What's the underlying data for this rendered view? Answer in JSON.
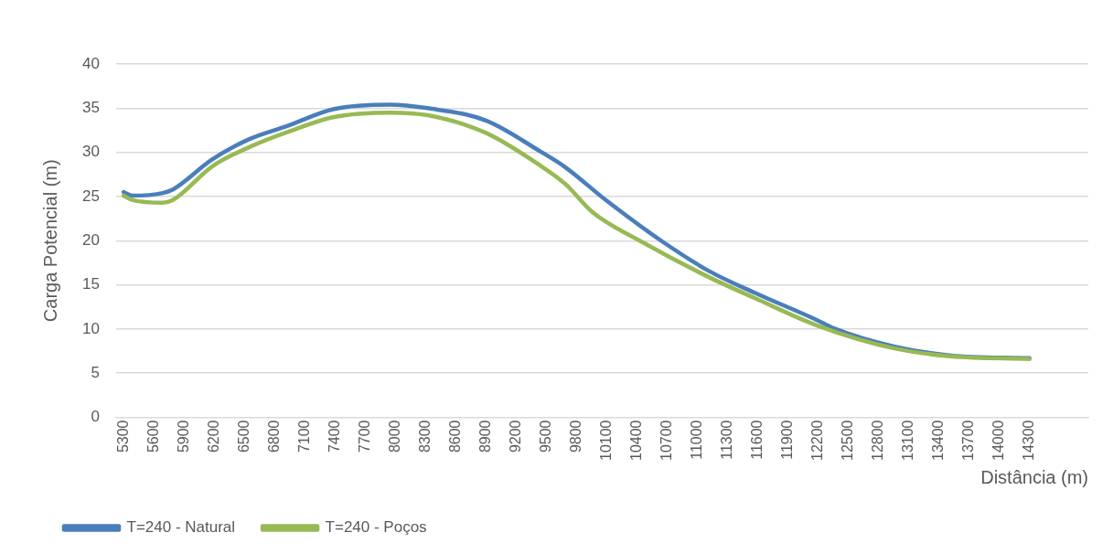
{
  "chart_data": {
    "type": "line",
    "xlabel": "Distância (m)",
    "ylabel": "Carga Potencial (m)",
    "xlim": [
      5225,
      14885
    ],
    "xticks": [
      5300,
      5600,
      5900,
      6200,
      6500,
      6800,
      7100,
      7400,
      7700,
      8000,
      8300,
      8600,
      8900,
      9200,
      9500,
      9800,
      10100,
      10400,
      10700,
      11000,
      11300,
      11600,
      11900,
      12200,
      12500,
      12800,
      13100,
      13400,
      13700,
      14000,
      14300
    ],
    "ylim": [
      0,
      40
    ],
    "yticks": [
      0,
      5,
      10,
      15,
      20,
      25,
      30,
      35,
      40
    ],
    "grid": "y",
    "legend": "bottom left",
    "marker": "none",
    "line_style": "solid",
    "series": [
      {
        "name": "T=240 - Natural",
        "color": "#4a7ebb",
        "x": [
          5300,
          5390,
          5690,
          5790,
          6180,
          6550,
          6930,
          7390,
          7950,
          8320,
          8900,
          9440,
          9690,
          10090,
          10640,
          11110,
          11570,
          12190,
          12350,
          12960,
          13520,
          14300
        ],
        "values": [
          25.5,
          25.1,
          25.4,
          25.8,
          29.2,
          31.5,
          33.0,
          34.9,
          35.4,
          35.0,
          33.6,
          30.1,
          28.3,
          24.6,
          20.0,
          16.6,
          14.1,
          11.0,
          10.1,
          8.0,
          7.0,
          6.7
        ]
      },
      {
        "name": "T=240 - Poços",
        "color": "#98b954",
        "x": [
          5300,
          5390,
          5690,
          5790,
          6180,
          6550,
          6930,
          7390,
          7950,
          8320,
          8900,
          9440,
          9690,
          9960,
          10460,
          11110,
          11570,
          12190,
          12960,
          13520,
          14300
        ],
        "values": [
          25.1,
          24.6,
          24.3,
          24.6,
          28.4,
          30.6,
          32.3,
          34.0,
          34.5,
          34.2,
          32.2,
          28.5,
          26.4,
          23.2,
          19.8,
          15.9,
          13.5,
          10.4,
          7.8,
          6.9,
          6.6
        ]
      }
    ]
  }
}
